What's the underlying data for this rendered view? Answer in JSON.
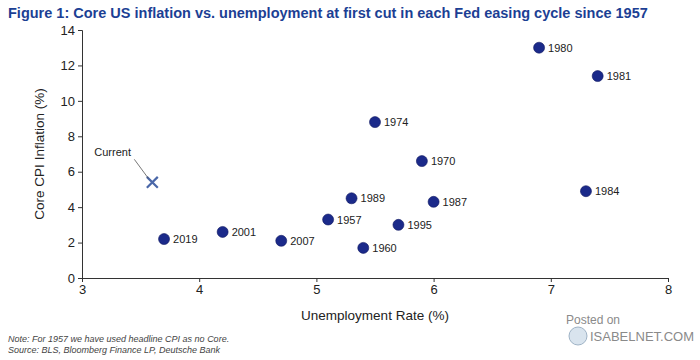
{
  "chart_data": {
    "type": "scatter",
    "title": "Figure 1: Core US inflation vs. unemployment at first cut in each Fed easing cycle since 1957",
    "x_label": "Unemployment Rate (%)",
    "y_label": "Core CPI Inflation (%)",
    "xlim": [
      3,
      8
    ],
    "xticks": [
      3,
      4,
      5,
      6,
      7,
      8
    ],
    "ylim": [
      0,
      14
    ],
    "yticks": [
      0,
      2,
      4,
      6,
      8,
      10,
      12,
      14
    ],
    "grid": false,
    "series": [
      {
        "x": [
          3.7,
          4.2,
          4.7,
          5.1,
          5.3,
          5.4,
          5.5,
          5.7,
          5.9,
          6.0,
          6.9,
          7.4,
          7.3
        ],
        "values": [
          2.2,
          2.6,
          2.1,
          3.3,
          4.5,
          1.7,
          8.8,
          3.0,
          6.6,
          4.3,
          13.0,
          11.4,
          4.9
        ],
        "labels": [
          "2019",
          "2001",
          "2007",
          "1957",
          "1989",
          "1960",
          "1974",
          "1995",
          "1970",
          "1987",
          "1980",
          "1981",
          "1984"
        ],
        "color": "#1b2a8a",
        "marker": "circle"
      },
      {
        "x": [
          3.6
        ],
        "values": [
          5.4
        ],
        "labels": [
          "Current"
        ],
        "color": "#4a67a8",
        "marker": "x"
      }
    ],
    "notes": [
      "Note: For 1957 we have used headline CPI as no Core.",
      "Source: BLS, Bloomberg Finance LP, Deutsche Bank"
    ],
    "annotations": [
      "Posted on",
      "ISABELNET.COM"
    ]
  }
}
